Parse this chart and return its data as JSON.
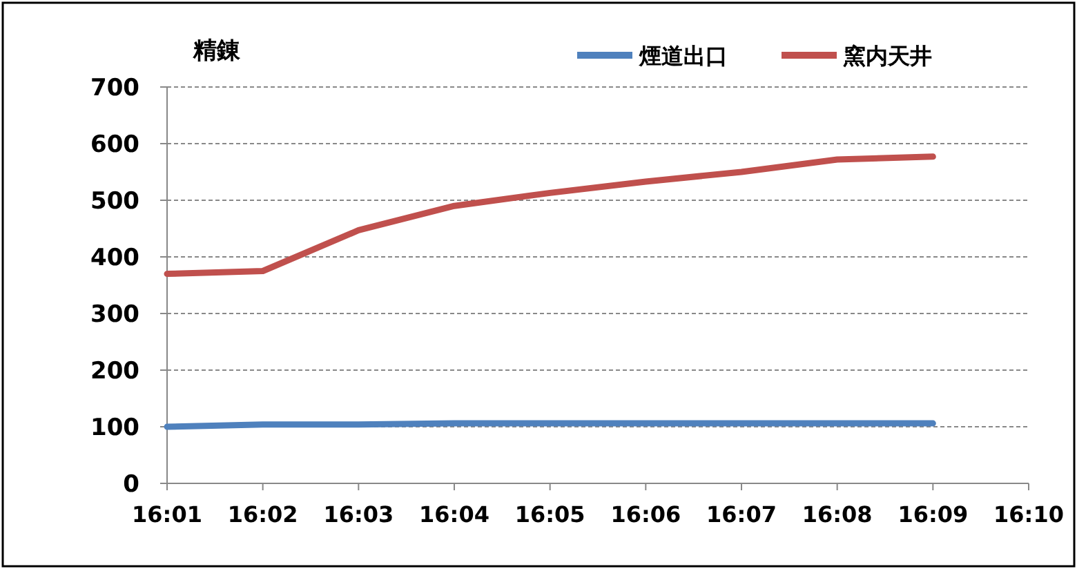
{
  "chart_data": {
    "type": "line",
    "title": "精錬",
    "categories": [
      "16:01",
      "16:02",
      "16:03",
      "16:04",
      "16:05",
      "16:06",
      "16:07",
      "16:08",
      "16:09",
      "16:10"
    ],
    "series": [
      {
        "name": "煙道出口",
        "color": "#4f81bd",
        "values": [
          100,
          104,
          104,
          106,
          106,
          106,
          106,
          106,
          106,
          null
        ]
      },
      {
        "name": "窯内天井",
        "color": "#c0504d",
        "values": [
          370,
          375,
          447,
          490,
          513,
          533,
          550,
          572,
          577,
          null
        ]
      }
    ],
    "ylim": [
      0,
      700
    ],
    "yticks": [
      0,
      100,
      200,
      300,
      400,
      500,
      600,
      700
    ],
    "grid": "y",
    "legend": "top right",
    "marker": "none",
    "line_style": "solid"
  }
}
